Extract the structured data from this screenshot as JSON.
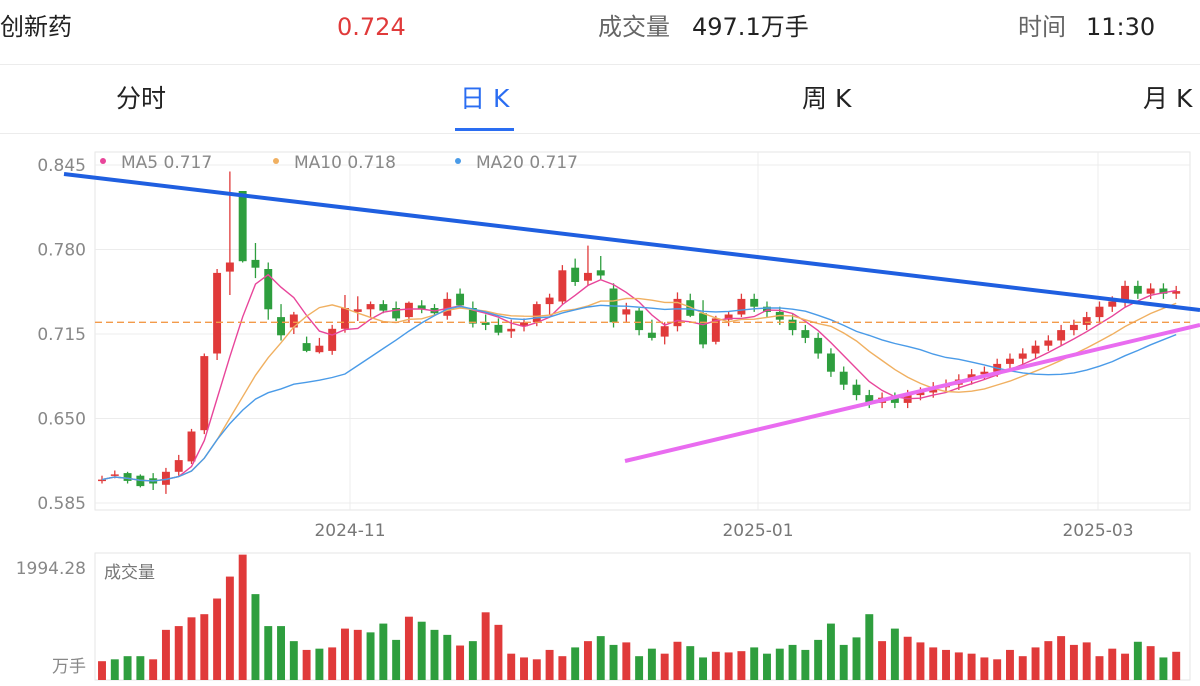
{
  "header": {
    "stock_name": "创新药",
    "price": "0.724",
    "volume_label": "成交量",
    "volume_value": "497.1万手",
    "time_label": "时间",
    "time_value": "11:30"
  },
  "tabs": [
    {
      "label": "分时",
      "active": false
    },
    {
      "label": "日 K",
      "active": true
    },
    {
      "label": "周 K",
      "active": false
    },
    {
      "label": "月 K",
      "active": false
    }
  ],
  "legend": [
    {
      "name": "MA5",
      "value": "0.717",
      "color": "#e8459a"
    },
    {
      "name": "MA10",
      "value": "0.718",
      "color": "#f0b061"
    },
    {
      "name": "MA20",
      "value": "0.717",
      "color": "#4a9be8"
    }
  ],
  "colors": {
    "up": "#e03a3a",
    "down": "#2e9e3e",
    "trend_upper": "#1f5fe0",
    "trend_lower": "#e96cf0",
    "ref_line": "#f39a4a",
    "accent": "#2a6df2"
  },
  "chart_data": {
    "type": "candlestick",
    "ylim": [
      0.585,
      0.845
    ],
    "y_ticks": [
      "0.845",
      "0.780",
      "0.715",
      "0.650",
      "0.585"
    ],
    "x_ticks": [
      {
        "label": "2024-11",
        "index": 12
      },
      {
        "label": "2025-01",
        "index": 51
      },
      {
        "label": "2025-03",
        "index": 83
      }
    ],
    "reference_price": 0.724,
    "ohlc": [
      [
        0.603,
        0.606,
        0.6,
        0.603
      ],
      [
        0.607,
        0.61,
        0.604,
        0.607
      ],
      [
        0.608,
        0.609,
        0.6,
        0.602
      ],
      [
        0.606,
        0.607,
        0.597,
        0.598
      ],
      [
        0.604,
        0.608,
        0.595,
        0.6
      ],
      [
        0.599,
        0.612,
        0.592,
        0.609
      ],
      [
        0.609,
        0.622,
        0.606,
        0.618
      ],
      [
        0.617,
        0.642,
        0.615,
        0.64
      ],
      [
        0.641,
        0.7,
        0.638,
        0.698
      ],
      [
        0.7,
        0.765,
        0.695,
        0.762
      ],
      [
        0.763,
        0.84,
        0.745,
        0.77
      ],
      [
        0.825,
        0.825,
        0.77,
        0.771
      ],
      [
        0.772,
        0.785,
        0.758,
        0.766
      ],
      [
        0.765,
        0.77,
        0.726,
        0.734
      ],
      [
        0.728,
        0.738,
        0.71,
        0.714
      ],
      [
        0.72,
        0.732,
        0.715,
        0.73
      ],
      [
        0.708,
        0.713,
        0.701,
        0.702
      ],
      [
        0.701,
        0.712,
        0.7,
        0.706
      ],
      [
        0.702,
        0.722,
        0.699,
        0.719
      ],
      [
        0.719,
        0.745,
        0.716,
        0.735
      ],
      [
        0.732,
        0.744,
        0.725,
        0.734
      ],
      [
        0.734,
        0.74,
        0.728,
        0.738
      ],
      [
        0.738,
        0.741,
        0.731,
        0.733
      ],
      [
        0.735,
        0.74,
        0.725,
        0.727
      ],
      [
        0.728,
        0.74,
        0.724,
        0.739
      ],
      [
        0.737,
        0.741,
        0.731,
        0.734
      ],
      [
        0.735,
        0.738,
        0.729,
        0.731
      ],
      [
        0.729,
        0.747,
        0.726,
        0.742
      ],
      [
        0.746,
        0.75,
        0.735,
        0.737
      ],
      [
        0.735,
        0.74,
        0.72,
        0.723
      ],
      [
        0.724,
        0.73,
        0.718,
        0.722
      ],
      [
        0.722,
        0.727,
        0.714,
        0.716
      ],
      [
        0.717,
        0.726,
        0.712,
        0.719
      ],
      [
        0.721,
        0.727,
        0.717,
        0.724
      ],
      [
        0.724,
        0.74,
        0.721,
        0.738
      ],
      [
        0.738,
        0.746,
        0.73,
        0.743
      ],
      [
        0.74,
        0.768,
        0.738,
        0.764
      ],
      [
        0.766,
        0.773,
        0.752,
        0.755
      ],
      [
        0.756,
        0.783,
        0.752,
        0.762
      ],
      [
        0.764,
        0.775,
        0.757,
        0.76
      ],
      [
        0.75,
        0.754,
        0.72,
        0.724
      ],
      [
        0.73,
        0.739,
        0.724,
        0.734
      ],
      [
        0.733,
        0.735,
        0.714,
        0.718
      ],
      [
        0.716,
        0.726,
        0.71,
        0.712
      ],
      [
        0.713,
        0.724,
        0.707,
        0.721
      ],
      [
        0.721,
        0.747,
        0.717,
        0.742
      ],
      [
        0.741,
        0.746,
        0.728,
        0.729
      ],
      [
        0.731,
        0.741,
        0.704,
        0.707
      ],
      [
        0.709,
        0.729,
        0.707,
        0.727
      ],
      [
        0.726,
        0.732,
        0.721,
        0.73
      ],
      [
        0.73,
        0.746,
        0.728,
        0.742
      ]
    ],
    "volume_ylim": [
      0,
      1994.28
    ],
    "volume_max_label": "1994.28",
    "volume_unit": "万手",
    "volume_title": "成交量",
    "volumes": [
      [
        300,
        "r"
      ],
      [
        330,
        "g"
      ],
      [
        380,
        "g"
      ],
      [
        380,
        "g"
      ],
      [
        330,
        "r"
      ],
      [
        800,
        "r"
      ],
      [
        860,
        "r"
      ],
      [
        1000,
        "r"
      ],
      [
        1050,
        "r"
      ],
      [
        1300,
        "r"
      ],
      [
        1650,
        "r"
      ],
      [
        2000,
        "r"
      ],
      [
        1370,
        "g"
      ],
      [
        860,
        "g"
      ],
      [
        860,
        "g"
      ],
      [
        620,
        "g"
      ],
      [
        480,
        "r"
      ],
      [
        500,
        "g"
      ],
      [
        520,
        "r"
      ],
      [
        820,
        "r"
      ],
      [
        800,
        "r"
      ],
      [
        760,
        "g"
      ],
      [
        900,
        "g"
      ],
      [
        640,
        "g"
      ],
      [
        1010,
        "r"
      ],
      [
        930,
        "g"
      ],
      [
        800,
        "g"
      ],
      [
        720,
        "g"
      ],
      [
        550,
        "r"
      ],
      [
        620,
        "g"
      ],
      [
        1080,
        "r"
      ],
      [
        880,
        "r"
      ]
    ],
    "volume_colored_count": 32
  }
}
